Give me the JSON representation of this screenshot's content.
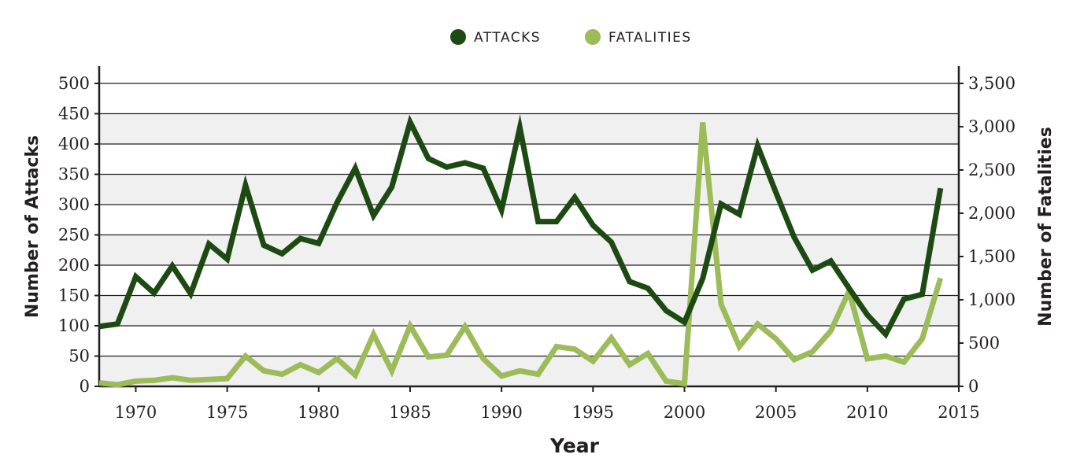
{
  "chart_data": {
    "type": "line",
    "legend": {
      "position": "top-center",
      "items": [
        "ATTACKS",
        "FATALITIES"
      ]
    },
    "xlabel": "Year",
    "ylabel_left": "Number of Attacks",
    "ylabel_right": "Number of Fatalities",
    "xlim": [
      1968,
      2015
    ],
    "ylim_left": [
      0,
      500
    ],
    "ylim_right": [
      0,
      3500
    ],
    "grid": true,
    "x_ticks": [
      "1970",
      "1975",
      "1980",
      "1985",
      "1990",
      "1995",
      "2000",
      "2005",
      "2010",
      "2015"
    ],
    "y_ticks_left": [
      "0",
      "50",
      "100",
      "150",
      "200",
      "250",
      "300",
      "350",
      "400",
      "450",
      "500"
    ],
    "y_ticks_right": [
      "0",
      "500",
      "1,000",
      "1,500",
      "2,000",
      "2,500",
      "3,000",
      "3,500"
    ],
    "colors": {
      "attacks": "#1d4a12",
      "fatalities": "#9cbb59",
      "band": "#f0f0f0",
      "axis": "#231f20"
    },
    "x": [
      1968,
      1969,
      1970,
      1971,
      1972,
      1973,
      1974,
      1975,
      1976,
      1977,
      1978,
      1979,
      1980,
      1981,
      1982,
      1983,
      1984,
      1985,
      1986,
      1987,
      1988,
      1989,
      1990,
      1991,
      1992,
      1993,
      1994,
      1995,
      1996,
      1997,
      1998,
      1999,
      2000,
      2001,
      2002,
      2003,
      2004,
      2005,
      2006,
      2007,
      2008,
      2009,
      2010,
      2011,
      2012,
      2013,
      2014
    ],
    "series": [
      {
        "name": "ATTACKS",
        "axis": "left",
        "values": [
          99,
          103,
          181,
          154,
          199,
          153,
          235,
          210,
          332,
          233,
          219,
          244,
          236,
          303,
          360,
          282,
          329,
          436,
          376,
          362,
          369,
          360,
          291,
          427,
          272,
          272,
          312,
          266,
          238,
          173,
          162,
          125,
          106,
          178,
          301,
          284,
          397,
          320,
          246,
          192,
          207,
          162,
          118,
          86,
          144,
          152,
          327
        ]
      },
      {
        "name": "FATALITIES",
        "axis": "left-scale-values-in-fatalities",
        "values": [
          40,
          20,
          60,
          70,
          100,
          70,
          80,
          90,
          350,
          180,
          140,
          250,
          160,
          320,
          130,
          600,
          180,
          700,
          340,
          360,
          690,
          320,
          120,
          180,
          140,
          460,
          430,
          290,
          560,
          250,
          380,
          60,
          30,
          3050,
          950,
          460,
          720,
          550,
          310,
          400,
          640,
          1100,
          320,
          350,
          280,
          550,
          1250
        ]
      }
    ]
  }
}
